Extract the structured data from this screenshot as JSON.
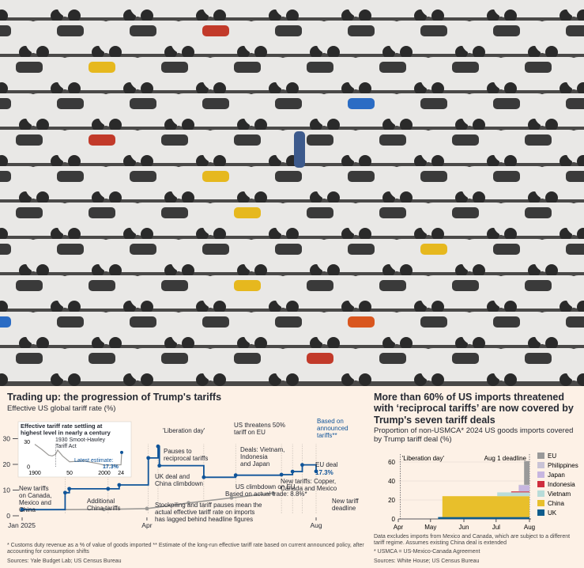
{
  "photo": {
    "description_icon": "parked-cars-photo"
  },
  "left": {
    "title": "Trading up: the progression of Trump's tariffs",
    "subtitle": "Effective US global tariff rate (%)",
    "footnote": "* Customs duty revenue as a % of value of goods imported  ** Estimate of the long-run effective tariff rate based on current announced policy, after accounting for consumption shifts",
    "sources": "Sources: Yale Budget Lab; US Census Bureau"
  },
  "right": {
    "title": "More than 60% of US imports threatened with ‘reciprocal tariffs’ are now covered by Trump's seven tariff deals",
    "subtitle": "Proportion of non-USMCA* 2024 US goods imports covered by Trump tariff deal (%)",
    "note1": "Data excludes imports from Mexico and Canada, which are subject to a different tariff regime. Assumes existing China deal is extended",
    "note2": "* USMCA = US-Mexico-Canada Agreement",
    "sources": "Sources: White House; US Census Bureau"
  },
  "chart_data": [
    {
      "type": "line",
      "title": "Trading up: the progression of Trump's tariffs",
      "ylabel": "Effective US global tariff rate (%)",
      "x_ticks": [
        "Jan 2025",
        "Apr",
        "Aug"
      ],
      "y_ticks": [
        "0",
        "10",
        "20",
        "30"
      ],
      "ylim": [
        0,
        30
      ],
      "grid": false,
      "series": [
        {
          "name": "Based on announced tariffs**",
          "x": [
            "Jan",
            "Feb 1",
            "Feb 4",
            "Mar 4",
            "Mar 12",
            "Apr 2",
            "Apr 9",
            "Apr 10",
            "May 12",
            "Jun 4",
            "Jul 7",
            "Jul 15",
            "Jul 22",
            "Aug 1"
          ],
          "y": [
            2.4,
            9.0,
            10.5,
            10.5,
            12.0,
            22.5,
            27.0,
            19.5,
            15.0,
            15.8,
            16.0,
            17.2,
            19.8,
            17.3
          ]
        },
        {
          "name": "Based on actual trade",
          "x": [
            "Jan",
            "Mar",
            "Apr",
            "May",
            "Jun",
            "Jul"
          ],
          "y": [
            2.3,
            2.5,
            2.8,
            5.0,
            7.0,
            8.8
          ]
        }
      ],
      "annotations": [
        "New tariffs on Canada, Mexico and China",
        "Additional China tariffs",
        "'Liberation day'",
        "Pauses to reciprocal tariffs",
        "UK deal and China climbdown",
        "US threatens 50% tariff on EU",
        "US climbdown on EU",
        "Deals: Vietnam, Indonesia and Japan",
        "New tariffs: Copper, Canada and Mexico",
        "Based on announced tariffs**",
        "EU deal",
        "17.3%",
        "Based on actual trade: 8.8%*",
        "New tariff deadline",
        "Stockpiling and tariff pauses mean the actual effective tariff rate on imports has lagged behind headline figures"
      ],
      "inset": {
        "title": "Effective tariff rate settling at highest level in nearly a century",
        "x_ticks": [
          "1900",
          "50",
          "2000",
          "24"
        ],
        "y_ticks": [
          "0",
          "30"
        ],
        "x": [
          1900,
          1910,
          1920,
          1925,
          1930,
          1933,
          1940,
          1950,
          1970,
          1990,
          2000,
          2010,
          2024,
          2025
        ],
        "y": [
          27,
          21,
          14,
          13,
          15,
          20,
          13,
          6,
          7,
          4,
          2,
          2,
          2.4,
          17.3
        ],
        "annotations": [
          "1930 Smoot-Hawley Tariff Act",
          "Latest estimate:",
          "17.3%"
        ]
      }
    },
    {
      "type": "area",
      "title": "More than 60% of US imports threatened with ‘reciprocal tariffs’ are now covered by Trump's seven tariff deals",
      "ylabel": "Proportion of non-USMCA* 2024 US goods imports covered by Trump tariff deal (%)",
      "x_ticks": [
        "Apr",
        "May",
        "Jun",
        "Jul",
        "Aug"
      ],
      "y_ticks": [
        "0",
        "20",
        "40",
        "60"
      ],
      "ylim": [
        0,
        70
      ],
      "legend_position": "right",
      "annotations": [
        "'Liberation day'",
        "Aug 1 deadline"
      ],
      "series": [
        {
          "name": "EU",
          "color": "#999999",
          "start": "Jul 27",
          "value": 25
        },
        {
          "name": "Philippines",
          "color": "#c9c3d6",
          "start": "Jul 22",
          "value": 1
        },
        {
          "name": "Japan",
          "color": "#c7b6e0",
          "start": "Jul 22",
          "value": 6
        },
        {
          "name": "Indonesia",
          "color": "#cf2e3e",
          "start": "Jul 15",
          "value": 1
        },
        {
          "name": "Vietnam",
          "color": "#b9dcd9",
          "start": "Jul 2",
          "value": 4
        },
        {
          "name": "China",
          "color": "#e8bf2b",
          "start": "May 12",
          "value": 22
        },
        {
          "name": "UK",
          "color": "#0e5c8c",
          "start": "May 8",
          "value": 2
        }
      ]
    }
  ]
}
